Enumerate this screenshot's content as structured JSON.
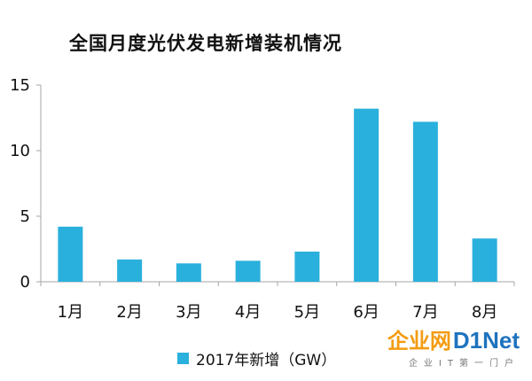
{
  "title": "全国月度光伏发电新增装机情况",
  "legend": {
    "label": "2017年新增（GW）"
  },
  "colors": {
    "bar": "#2ab0dc",
    "axis": "#a6a6a6"
  },
  "watermark": {
    "cn": "企业网",
    "en": "D1Net",
    "sub": "企业IT第一门户"
  },
  "chart_data": {
    "type": "bar",
    "title": "全国月度光伏发电新增装机情况",
    "categories": [
      "1月",
      "2月",
      "3月",
      "4月",
      "5月",
      "6月",
      "7月",
      "8月"
    ],
    "series": [
      {
        "name": "2017年新增（GW）",
        "values": [
          4.2,
          1.7,
          1.4,
          1.6,
          2.3,
          13.2,
          12.2,
          3.3
        ]
      }
    ],
    "ylim": [
      0,
      15
    ],
    "yticks": [
      0,
      5,
      10,
      15
    ],
    "grid": false,
    "legend_position": "bottom"
  }
}
